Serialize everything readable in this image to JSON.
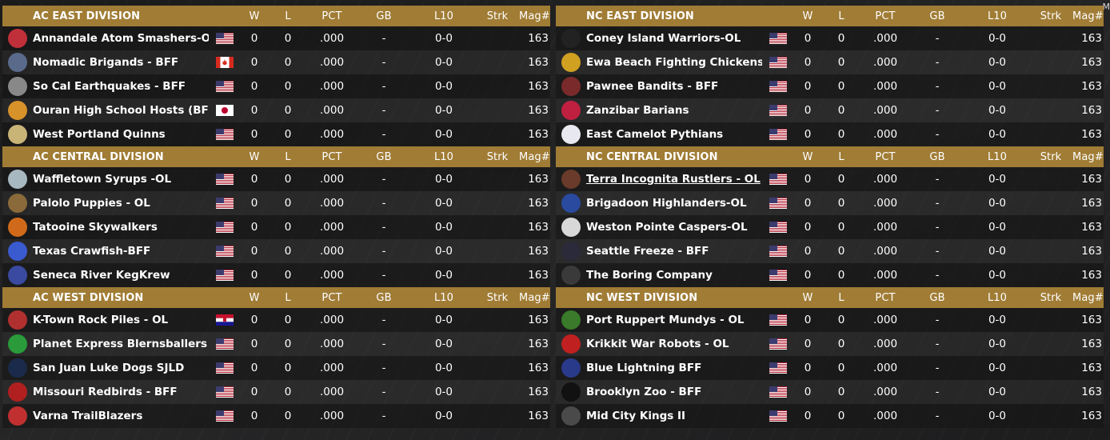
{
  "columns": {
    "w": "W",
    "l": "L",
    "pct": "PCT",
    "gb": "GB",
    "l10": "L10",
    "strk": "Strk",
    "mag": "Mag#"
  },
  "edge_letter": "M",
  "left": [
    {
      "name": "AC EAST DIVISION",
      "teams": [
        {
          "name": "Annandale Atom Smashers-OL",
          "flag": "us",
          "logo": "atom-smashers",
          "color": "#c0303a",
          "w": "0",
          "l": "0",
          "pct": ".000",
          "gb": "-",
          "l10": "0-0",
          "strk": "",
          "mag": "163"
        },
        {
          "name": "Nomadic Brigands - BFF",
          "flag": "ca",
          "logo": "brigands",
          "color": "#5a6a8a",
          "w": "0",
          "l": "0",
          "pct": ".000",
          "gb": "-",
          "l10": "0-0",
          "strk": "",
          "mag": "163"
        },
        {
          "name": "So Cal Earthquakes - BFF",
          "flag": "us",
          "logo": "earthquakes",
          "color": "#888888",
          "w": "0",
          "l": "0",
          "pct": ".000",
          "gb": "-",
          "l10": "0-0",
          "strk": "",
          "mag": "163"
        },
        {
          "name": "Ouran High School Hosts (BFF)",
          "flag": "jp",
          "logo": "hosts",
          "color": "#d7922a",
          "w": "0",
          "l": "0",
          "pct": ".000",
          "gb": "-",
          "l10": "0-0",
          "strk": "",
          "mag": "163"
        },
        {
          "name": "West Portland Quinns",
          "flag": "us",
          "logo": "quinns",
          "color": "#c9b478",
          "w": "0",
          "l": "0",
          "pct": ".000",
          "gb": "-",
          "l10": "0-0",
          "strk": "",
          "mag": "163"
        }
      ]
    },
    {
      "name": "AC CENTRAL DIVISION",
      "teams": [
        {
          "name": "Waffletown Syrups -OL",
          "flag": "us",
          "logo": "syrups",
          "color": "#a8b8c0",
          "w": "0",
          "l": "0",
          "pct": ".000",
          "gb": "-",
          "l10": "0-0",
          "strk": "",
          "mag": "163"
        },
        {
          "name": "Palolo Puppies - OL",
          "flag": "us",
          "logo": "puppies",
          "color": "#8a6a3a",
          "w": "0",
          "l": "0",
          "pct": ".000",
          "gb": "-",
          "l10": "0-0",
          "strk": "",
          "mag": "163"
        },
        {
          "name": "Tatooine Skywalkers",
          "flag": "us",
          "logo": "skywalkers",
          "color": "#d06a1a",
          "w": "0",
          "l": "0",
          "pct": ".000",
          "gb": "-",
          "l10": "0-0",
          "strk": "",
          "mag": "163"
        },
        {
          "name": "Texas Crawfish-BFF",
          "flag": "us",
          "logo": "crawfish",
          "color": "#3a5ad0",
          "w": "0",
          "l": "0",
          "pct": ".000",
          "gb": "-",
          "l10": "0-0",
          "strk": "",
          "mag": "163"
        },
        {
          "name": "Seneca River KegKrew",
          "flag": "us",
          "logo": "kegkrew",
          "color": "#3a4aa0",
          "w": "0",
          "l": "0",
          "pct": ".000",
          "gb": "-",
          "l10": "0-0",
          "strk": "",
          "mag": "163"
        }
      ]
    },
    {
      "name": "AC WEST DIVISION",
      "teams": [
        {
          "name": "K-Town Rock Piles - OL",
          "flag": "hr",
          "logo": "rock-piles",
          "color": "#b03030",
          "w": "0",
          "l": "0",
          "pct": ".000",
          "gb": "-",
          "l10": "0-0",
          "strk": "",
          "mag": "163"
        },
        {
          "name": "Planet Express Blernsballers",
          "flag": "us",
          "logo": "blernsballers",
          "color": "#2a9a3a",
          "w": "0",
          "l": "0",
          "pct": ".000",
          "gb": "-",
          "l10": "0-0",
          "strk": "",
          "mag": "163"
        },
        {
          "name": "San Juan Luke Dogs SJLD",
          "flag": "us",
          "logo": "luke-dogs",
          "color": "#1a2a4a",
          "w": "0",
          "l": "0",
          "pct": ".000",
          "gb": "-",
          "l10": "0-0",
          "strk": "",
          "mag": "163"
        },
        {
          "name": "Missouri Redbirds - BFF",
          "flag": "us",
          "logo": "redbirds",
          "color": "#b02020",
          "w": "0",
          "l": "0",
          "pct": ".000",
          "gb": "-",
          "l10": "0-0",
          "strk": "",
          "mag": "163"
        },
        {
          "name": "Varna TrailBlazers",
          "flag": "us",
          "logo": "trailblazers",
          "color": "#c03030",
          "w": "0",
          "l": "0",
          "pct": ".000",
          "gb": "-",
          "l10": "0-0",
          "strk": "",
          "mag": "163"
        }
      ]
    }
  ],
  "right": [
    {
      "name": "NC EAST DIVISION",
      "teams": [
        {
          "name": "Coney Island Warriors-OL",
          "flag": "us",
          "logo": "warriors",
          "color": "#222222",
          "w": "0",
          "l": "0",
          "pct": ".000",
          "gb": "-",
          "l10": "0-0",
          "strk": "",
          "mag": "163"
        },
        {
          "name": "Ewa Beach Fighting Chickens -",
          "flag": "us",
          "logo": "chickens",
          "color": "#d0a020",
          "w": "0",
          "l": "0",
          "pct": ".000",
          "gb": "-",
          "l10": "0-0",
          "strk": "",
          "mag": "163"
        },
        {
          "name": "Pawnee Bandits - BFF",
          "flag": "us",
          "logo": "bandits",
          "color": "#7a2a2a",
          "w": "0",
          "l": "0",
          "pct": ".000",
          "gb": "-",
          "l10": "0-0",
          "strk": "",
          "mag": "163"
        },
        {
          "name": "Zanzibar Barians",
          "flag": "us",
          "logo": "barians",
          "color": "#c02040",
          "w": "0",
          "l": "0",
          "pct": ".000",
          "gb": "-",
          "l10": "0-0",
          "strk": "",
          "mag": "163"
        },
        {
          "name": "East Camelot Pythians",
          "flag": "us",
          "logo": "pythians",
          "color": "#e8e8f0",
          "w": "0",
          "l": "0",
          "pct": ".000",
          "gb": "-",
          "l10": "0-0",
          "strk": "",
          "mag": "163"
        }
      ]
    },
    {
      "name": "NC CENTRAL DIVISION",
      "teams": [
        {
          "name": "Terra Incognita Rustlers - OL",
          "flag": "us",
          "logo": "rustlers",
          "color": "#6a3a2a",
          "w": "0",
          "l": "0",
          "pct": ".000",
          "gb": "-",
          "l10": "0-0",
          "strk": "",
          "mag": "163",
          "selected": true
        },
        {
          "name": "Brigadoon Highlanders-OL",
          "flag": "us",
          "logo": "highlanders",
          "color": "#2a4aa0",
          "w": "0",
          "l": "0",
          "pct": ".000",
          "gb": "-",
          "l10": "0-0",
          "strk": "",
          "mag": "163"
        },
        {
          "name": "Weston Pointe Caspers-OL",
          "flag": "us",
          "logo": "caspers",
          "color": "#d8d8d8",
          "w": "0",
          "l": "0",
          "pct": ".000",
          "gb": "-",
          "l10": "0-0",
          "strk": "",
          "mag": "163"
        },
        {
          "name": "Seattle Freeze - BFF",
          "flag": "us",
          "logo": "freeze",
          "color": "#2a2a3a",
          "w": "0",
          "l": "0",
          "pct": ".000",
          "gb": "-",
          "l10": "0-0",
          "strk": "",
          "mag": "163"
        },
        {
          "name": "The Boring Company",
          "flag": "us",
          "logo": "boring",
          "color": "#3a3a3a",
          "w": "0",
          "l": "0",
          "pct": ".000",
          "gb": "-",
          "l10": "0-0",
          "strk": "",
          "mag": "163"
        }
      ]
    },
    {
      "name": "NC WEST DIVISION",
      "teams": [
        {
          "name": "Port Ruppert Mundys - OL",
          "flag": "us",
          "logo": "mundys",
          "color": "#3a7a2a",
          "w": "0",
          "l": "0",
          "pct": ".000",
          "gb": "-",
          "l10": "0-0",
          "strk": "",
          "mag": "163"
        },
        {
          "name": "Krikkit War Robots - OL",
          "flag": "us",
          "logo": "war-robots",
          "color": "#c02020",
          "w": "0",
          "l": "0",
          "pct": ".000",
          "gb": "-",
          "l10": "0-0",
          "strk": "",
          "mag": "163"
        },
        {
          "name": "Blue Lightning BFF",
          "flag": "us",
          "logo": "blue-lightning",
          "color": "#2a3a8a",
          "w": "0",
          "l": "0",
          "pct": ".000",
          "gb": "-",
          "l10": "0-0",
          "strk": "",
          "mag": "163"
        },
        {
          "name": "Brooklyn Zoo - BFF",
          "flag": "us",
          "logo": "brooklyn-zoo",
          "color": "#111111",
          "w": "0",
          "l": "0",
          "pct": ".000",
          "gb": "-",
          "l10": "0-0",
          "strk": "",
          "mag": "163"
        },
        {
          "name": "Mid City Kings II",
          "flag": "us",
          "logo": "kings",
          "color": "#4a4a4a",
          "w": "0",
          "l": "0",
          "pct": ".000",
          "gb": "-",
          "l10": "0-0",
          "strk": "",
          "mag": "163"
        }
      ]
    }
  ]
}
